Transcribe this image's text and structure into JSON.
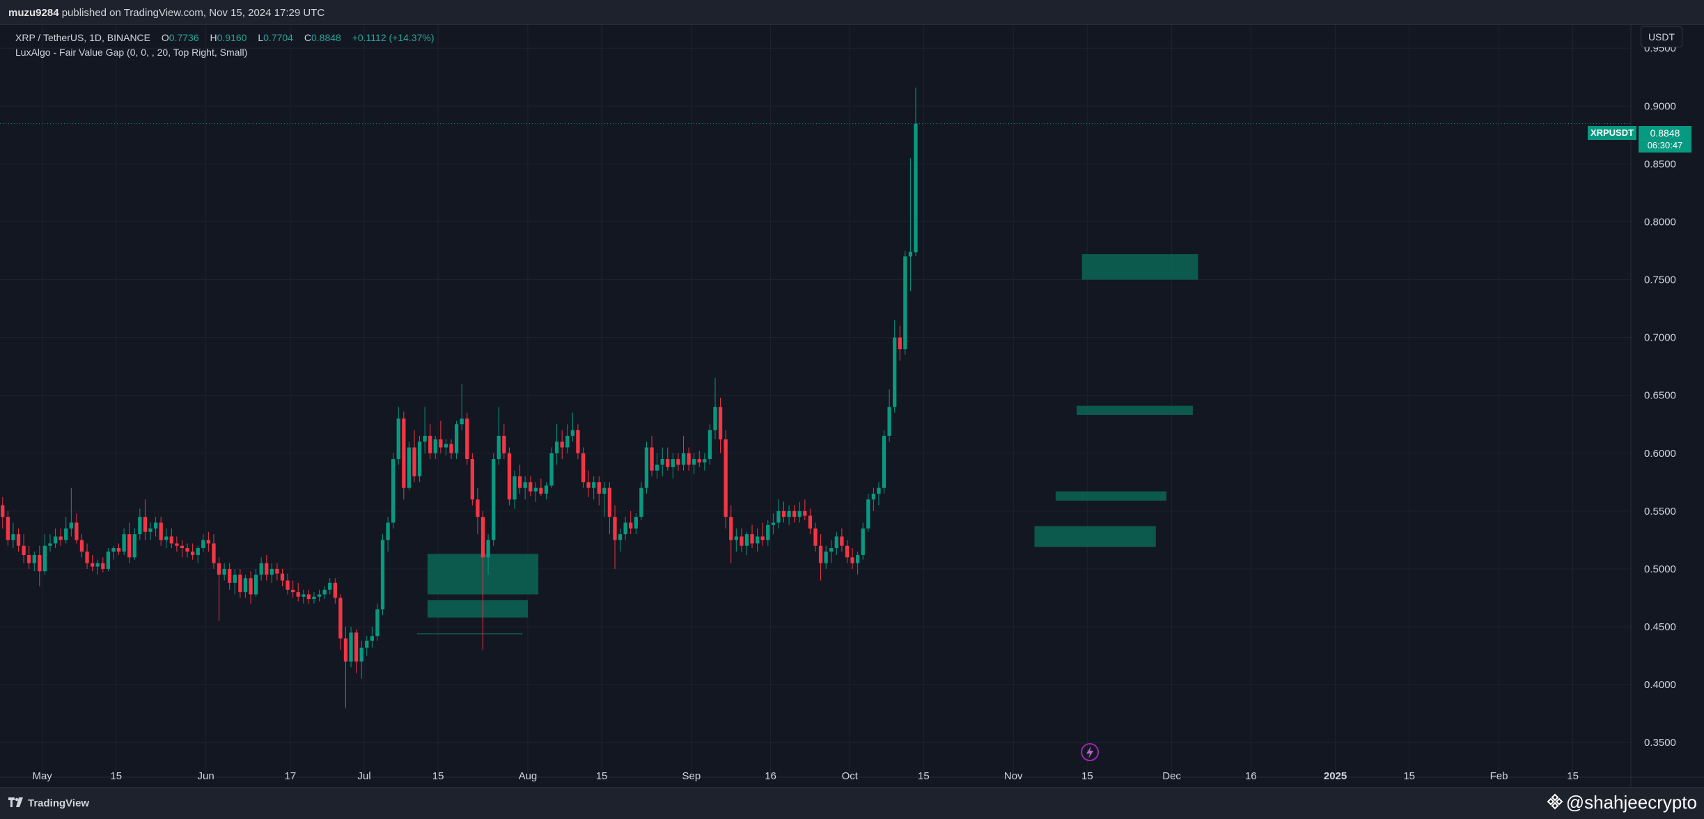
{
  "header": {
    "user": "muzu9284",
    "published_text": "published on TradingView.com, Nov 15, 2024 17:29 UTC"
  },
  "legend": {
    "symbol": "XRP / TetherUS, 1D, BINANCE",
    "open_label": "O",
    "open": "0.7736",
    "high_label": "H",
    "high": "0.9160",
    "low_label": "L",
    "low": "0.7704",
    "close_label": "C",
    "close": "0.8848",
    "change": "+0.1112 (+14.37%)",
    "indicator": "LuxAlgo - Fair Value Gap (0, 0, , 20, Top Right, Small)"
  },
  "price_scale": {
    "currency_button": "USDT"
  },
  "last_price": {
    "symbol": "XRPUSDT",
    "price": "0.8848",
    "countdown": "06:30:47"
  },
  "footer": {
    "brand": "TradingView",
    "watermark": "@shahjeecrypto"
  },
  "colors": {
    "up": "#089981",
    "down": "#f23645",
    "background": "#131722",
    "grid": "#1f2330",
    "fvg_fill": "#0b6655",
    "text": "#d1d4dc"
  },
  "icons": {
    "lightning": "lightning-icon",
    "tv_logo": "tradingview-logo-icon",
    "binance": "binance-icon"
  },
  "chart_data": {
    "type": "candlestick",
    "symbol": "XRP / TetherUS",
    "interval": "1D",
    "exchange": "BINANCE",
    "y_axis": {
      "ylim": [
        0.32,
        0.97
      ],
      "ticks": [
        "0.3500",
        "0.4000",
        "0.4500",
        "0.5000",
        "0.5500",
        "0.6000",
        "0.6500",
        "0.7000",
        "0.7500",
        "0.8000",
        "0.8500",
        "0.9000",
        "0.9500"
      ]
    },
    "x_axis": {
      "range": [
        "2024-04-23",
        "2025-02-26"
      ],
      "ticks": [
        {
          "date": "2024-05-01",
          "label": "May"
        },
        {
          "date": "2024-05-15",
          "label": "15"
        },
        {
          "date": "2024-06-01",
          "label": "Jun"
        },
        {
          "date": "2024-06-17",
          "label": "17"
        },
        {
          "date": "2024-07-01",
          "label": "Jul"
        },
        {
          "date": "2024-07-15",
          "label": "15"
        },
        {
          "date": "2024-08-01",
          "label": "Aug"
        },
        {
          "date": "2024-08-15",
          "label": "15"
        },
        {
          "date": "2024-09-01",
          "label": "Sep"
        },
        {
          "date": "2024-09-16",
          "label": "16"
        },
        {
          "date": "2024-10-01",
          "label": "Oct"
        },
        {
          "date": "2024-10-15",
          "label": "15"
        },
        {
          "date": "2024-11-01",
          "label": "Nov"
        },
        {
          "date": "2024-11-15",
          "label": "15"
        },
        {
          "date": "2024-12-01",
          "label": "Dec"
        },
        {
          "date": "2024-12-16",
          "label": "16"
        },
        {
          "date": "2025-01-01",
          "label": "2025"
        },
        {
          "date": "2025-01-15",
          "label": "15"
        },
        {
          "date": "2025-02-01",
          "label": "Feb"
        },
        {
          "date": "2025-02-15",
          "label": "15"
        }
      ]
    },
    "start_date": "2024-04-23",
    "ohlc": [
      [
        0.555,
        0.562,
        0.535,
        0.545
      ],
      [
        0.545,
        0.55,
        0.52,
        0.525
      ],
      [
        0.525,
        0.54,
        0.518,
        0.53
      ],
      [
        0.53,
        0.535,
        0.515,
        0.52
      ],
      [
        0.52,
        0.53,
        0.505,
        0.512
      ],
      [
        0.512,
        0.52,
        0.5,
        0.505
      ],
      [
        0.505,
        0.515,
        0.498,
        0.512
      ],
      [
        0.512,
        0.52,
        0.485,
        0.498
      ],
      [
        0.498,
        0.53,
        0.495,
        0.52
      ],
      [
        0.52,
        0.53,
        0.515,
        0.522
      ],
      [
        0.522,
        0.535,
        0.518,
        0.528
      ],
      [
        0.528,
        0.535,
        0.52,
        0.525
      ],
      [
        0.525,
        0.545,
        0.522,
        0.535
      ],
      [
        0.535,
        0.57,
        0.528,
        0.54
      ],
      [
        0.54,
        0.548,
        0.522,
        0.525
      ],
      [
        0.525,
        0.53,
        0.51,
        0.515
      ],
      [
        0.515,
        0.522,
        0.5,
        0.505
      ],
      [
        0.505,
        0.512,
        0.498,
        0.502
      ],
      [
        0.502,
        0.508,
        0.495,
        0.505
      ],
      [
        0.505,
        0.51,
        0.497,
        0.5
      ],
      [
        0.5,
        0.518,
        0.498,
        0.515
      ],
      [
        0.515,
        0.52,
        0.508,
        0.518
      ],
      [
        0.518,
        0.522,
        0.512,
        0.515
      ],
      [
        0.515,
        0.535,
        0.512,
        0.53
      ],
      [
        0.53,
        0.54,
        0.505,
        0.51
      ],
      [
        0.51,
        0.535,
        0.508,
        0.53
      ],
      [
        0.53,
        0.552,
        0.525,
        0.545
      ],
      [
        0.545,
        0.56,
        0.525,
        0.532
      ],
      [
        0.532,
        0.54,
        0.525,
        0.535
      ],
      [
        0.535,
        0.545,
        0.528,
        0.54
      ],
      [
        0.54,
        0.545,
        0.52,
        0.525
      ],
      [
        0.525,
        0.535,
        0.518,
        0.528
      ],
      [
        0.528,
        0.535,
        0.518,
        0.522
      ],
      [
        0.522,
        0.528,
        0.515,
        0.52
      ],
      [
        0.52,
        0.525,
        0.51,
        0.518
      ],
      [
        0.518,
        0.522,
        0.51,
        0.515
      ],
      [
        0.515,
        0.522,
        0.508,
        0.512
      ],
      [
        0.512,
        0.52,
        0.505,
        0.518
      ],
      [
        0.518,
        0.53,
        0.515,
        0.525
      ],
      [
        0.525,
        0.532,
        0.515,
        0.522
      ],
      [
        0.522,
        0.53,
        0.5,
        0.505
      ],
      [
        0.505,
        0.51,
        0.455,
        0.495
      ],
      [
        0.495,
        0.505,
        0.49,
        0.5
      ],
      [
        0.5,
        0.505,
        0.482,
        0.488
      ],
      [
        0.488,
        0.5,
        0.478,
        0.495
      ],
      [
        0.495,
        0.5,
        0.475,
        0.48
      ],
      [
        0.48,
        0.495,
        0.475,
        0.492
      ],
      [
        0.492,
        0.498,
        0.47,
        0.478
      ],
      [
        0.478,
        0.5,
        0.476,
        0.495
      ],
      [
        0.495,
        0.51,
        0.49,
        0.505
      ],
      [
        0.505,
        0.512,
        0.49,
        0.495
      ],
      [
        0.495,
        0.505,
        0.488,
        0.5
      ],
      [
        0.5,
        0.505,
        0.49,
        0.496
      ],
      [
        0.496,
        0.5,
        0.485,
        0.49
      ],
      [
        0.49,
        0.496,
        0.478,
        0.482
      ],
      [
        0.482,
        0.49,
        0.475,
        0.48
      ],
      [
        0.48,
        0.488,
        0.472,
        0.476
      ],
      [
        0.476,
        0.482,
        0.47,
        0.478
      ],
      [
        0.478,
        0.482,
        0.47,
        0.474
      ],
      [
        0.474,
        0.48,
        0.47,
        0.476
      ],
      [
        0.476,
        0.482,
        0.472,
        0.478
      ],
      [
        0.478,
        0.485,
        0.474,
        0.482
      ],
      [
        0.482,
        0.492,
        0.478,
        0.488
      ],
      [
        0.488,
        0.492,
        0.47,
        0.475
      ],
      [
        0.475,
        0.478,
        0.43,
        0.44
      ],
      [
        0.44,
        0.45,
        0.38,
        0.42
      ],
      [
        0.42,
        0.45,
        0.415,
        0.445
      ],
      [
        0.445,
        0.448,
        0.41,
        0.42
      ],
      [
        0.42,
        0.438,
        0.405,
        0.432
      ],
      [
        0.432,
        0.442,
        0.425,
        0.438
      ],
      [
        0.438,
        0.45,
        0.432,
        0.442
      ],
      [
        0.442,
        0.47,
        0.438,
        0.465
      ],
      [
        0.465,
        0.53,
        0.46,
        0.525
      ],
      [
        0.525,
        0.545,
        0.515,
        0.54
      ],
      [
        0.54,
        0.6,
        0.535,
        0.595
      ],
      [
        0.595,
        0.64,
        0.59,
        0.63
      ],
      [
        0.63,
        0.636,
        0.56,
        0.57
      ],
      [
        0.57,
        0.61,
        0.568,
        0.605
      ],
      [
        0.605,
        0.62,
        0.575,
        0.58
      ],
      [
        0.58,
        0.615,
        0.575,
        0.61
      ],
      [
        0.61,
        0.64,
        0.6,
        0.615
      ],
      [
        0.615,
        0.625,
        0.595,
        0.6
      ],
      [
        0.6,
        0.615,
        0.595,
        0.612
      ],
      [
        0.612,
        0.628,
        0.6,
        0.605
      ],
      [
        0.605,
        0.612,
        0.598,
        0.608
      ],
      [
        0.608,
        0.612,
        0.595,
        0.6
      ],
      [
        0.6,
        0.628,
        0.595,
        0.625
      ],
      [
        0.625,
        0.66,
        0.62,
        0.63
      ],
      [
        0.63,
        0.635,
        0.59,
        0.595
      ],
      [
        0.595,
        0.6,
        0.555,
        0.56
      ],
      [
        0.56,
        0.57,
        0.53,
        0.545
      ],
      [
        0.545,
        0.55,
        0.43,
        0.51
      ],
      [
        0.51,
        0.53,
        0.495,
        0.525
      ],
      [
        0.525,
        0.6,
        0.52,
        0.595
      ],
      [
        0.595,
        0.64,
        0.59,
        0.615
      ],
      [
        0.615,
        0.625,
        0.595,
        0.6
      ],
      [
        0.6,
        0.605,
        0.555,
        0.56
      ],
      [
        0.56,
        0.585,
        0.552,
        0.58
      ],
      [
        0.58,
        0.59,
        0.565,
        0.57
      ],
      [
        0.57,
        0.58,
        0.56,
        0.575
      ],
      [
        0.575,
        0.58,
        0.563,
        0.567
      ],
      [
        0.567,
        0.575,
        0.558,
        0.57
      ],
      [
        0.57,
        0.578,
        0.563,
        0.565
      ],
      [
        0.565,
        0.575,
        0.56,
        0.572
      ],
      [
        0.572,
        0.605,
        0.57,
        0.6
      ],
      [
        0.6,
        0.625,
        0.59,
        0.61
      ],
      [
        0.61,
        0.62,
        0.595,
        0.605
      ],
      [
        0.605,
        0.625,
        0.6,
        0.615
      ],
      [
        0.615,
        0.635,
        0.61,
        0.62
      ],
      [
        0.62,
        0.625,
        0.595,
        0.6
      ],
      [
        0.6,
        0.605,
        0.57,
        0.575
      ],
      [
        0.575,
        0.585,
        0.562,
        0.57
      ],
      [
        0.57,
        0.58,
        0.56,
        0.575
      ],
      [
        0.575,
        0.58,
        0.555,
        0.565
      ],
      [
        0.565,
        0.575,
        0.545,
        0.57
      ],
      [
        0.57,
        0.575,
        0.53,
        0.545
      ],
      [
        0.545,
        0.555,
        0.5,
        0.525
      ],
      [
        0.525,
        0.535,
        0.515,
        0.53
      ],
      [
        0.53,
        0.545,
        0.525,
        0.54
      ],
      [
        0.54,
        0.55,
        0.53,
        0.535
      ],
      [
        0.535,
        0.548,
        0.53,
        0.545
      ],
      [
        0.545,
        0.575,
        0.542,
        0.57
      ],
      [
        0.57,
        0.61,
        0.565,
        0.605
      ],
      [
        0.605,
        0.615,
        0.58,
        0.585
      ],
      [
        0.585,
        0.6,
        0.578,
        0.59
      ],
      [
        0.59,
        0.605,
        0.58,
        0.595
      ],
      [
        0.595,
        0.605,
        0.585,
        0.588
      ],
      [
        0.588,
        0.6,
        0.578,
        0.595
      ],
      [
        0.595,
        0.6,
        0.585,
        0.59
      ],
      [
        0.59,
        0.615,
        0.585,
        0.6
      ],
      [
        0.6,
        0.605,
        0.585,
        0.59
      ],
      [
        0.59,
        0.6,
        0.582,
        0.595
      ],
      [
        0.595,
        0.602,
        0.588,
        0.592
      ],
      [
        0.592,
        0.6,
        0.585,
        0.595
      ],
      [
        0.595,
        0.625,
        0.59,
        0.62
      ],
      [
        0.62,
        0.665,
        0.612,
        0.64
      ],
      [
        0.64,
        0.648,
        0.6,
        0.612
      ],
      [
        0.612,
        0.62,
        0.535,
        0.545
      ],
      [
        0.545,
        0.555,
        0.505,
        0.525
      ],
      [
        0.525,
        0.535,
        0.515,
        0.528
      ],
      [
        0.528,
        0.535,
        0.515,
        0.52
      ],
      [
        0.52,
        0.532,
        0.512,
        0.53
      ],
      [
        0.53,
        0.538,
        0.518,
        0.522
      ],
      [
        0.522,
        0.535,
        0.515,
        0.528
      ],
      [
        0.528,
        0.54,
        0.52,
        0.525
      ],
      [
        0.525,
        0.542,
        0.52,
        0.538
      ],
      [
        0.538,
        0.548,
        0.53,
        0.54
      ],
      [
        0.54,
        0.56,
        0.535,
        0.55
      ],
      [
        0.55,
        0.558,
        0.54,
        0.545
      ],
      [
        0.545,
        0.555,
        0.538,
        0.55
      ],
      [
        0.55,
        0.555,
        0.54,
        0.545
      ],
      [
        0.545,
        0.558,
        0.54,
        0.55
      ],
      [
        0.55,
        0.56,
        0.542,
        0.546
      ],
      [
        0.546,
        0.552,
        0.53,
        0.535
      ],
      [
        0.535,
        0.54,
        0.515,
        0.52
      ],
      [
        0.52,
        0.53,
        0.49,
        0.505
      ],
      [
        0.505,
        0.52,
        0.5,
        0.515
      ],
      [
        0.515,
        0.525,
        0.505,
        0.518
      ],
      [
        0.518,
        0.532,
        0.512,
        0.528
      ],
      [
        0.528,
        0.535,
        0.515,
        0.52
      ],
      [
        0.52,
        0.525,
        0.505,
        0.51
      ],
      [
        0.51,
        0.518,
        0.5,
        0.505
      ],
      [
        0.505,
        0.515,
        0.495,
        0.512
      ],
      [
        0.512,
        0.54,
        0.508,
        0.535
      ],
      [
        0.535,
        0.565,
        0.532,
        0.56
      ],
      [
        0.56,
        0.57,
        0.55,
        0.565
      ],
      [
        0.565,
        0.575,
        0.555,
        0.57
      ],
      [
        0.57,
        0.62,
        0.565,
        0.615
      ],
      [
        0.615,
        0.655,
        0.61,
        0.64
      ],
      [
        0.64,
        0.715,
        0.635,
        0.7
      ],
      [
        0.7,
        0.71,
        0.68,
        0.69
      ],
      [
        0.69,
        0.775,
        0.685,
        0.77
      ],
      [
        0.77,
        0.855,
        0.74,
        0.774
      ],
      [
        0.7736,
        0.916,
        0.7704,
        0.8848
      ]
    ],
    "fair_value_gaps": [
      {
        "start": "2024-07-13",
        "end": "2024-08-02",
        "top": 0.513,
        "bottom": 0.478
      },
      {
        "start": "2024-07-13",
        "end": "2024-07-31",
        "top": 0.473,
        "bottom": 0.458
      },
      {
        "start": "2024-07-11",
        "end": "2024-07-30",
        "top": 0.4445,
        "bottom": 0.4435
      },
      {
        "start": "2024-11-05",
        "end": "2024-11-27",
        "top": 0.537,
        "bottom": 0.519
      },
      {
        "start": "2024-11-09",
        "end": "2024-11-29",
        "top": 0.567,
        "bottom": 0.559
      },
      {
        "start": "2024-11-13",
        "end": "2024-12-04",
        "top": 0.641,
        "bottom": 0.633
      },
      {
        "start": "2024-11-14",
        "end": "2024-12-05",
        "top": 0.772,
        "bottom": 0.75
      }
    ],
    "last_price": 0.8848,
    "grid": true,
    "markers": [
      {
        "date": "2024-11-15",
        "icon": "lightning-icon"
      }
    ]
  }
}
